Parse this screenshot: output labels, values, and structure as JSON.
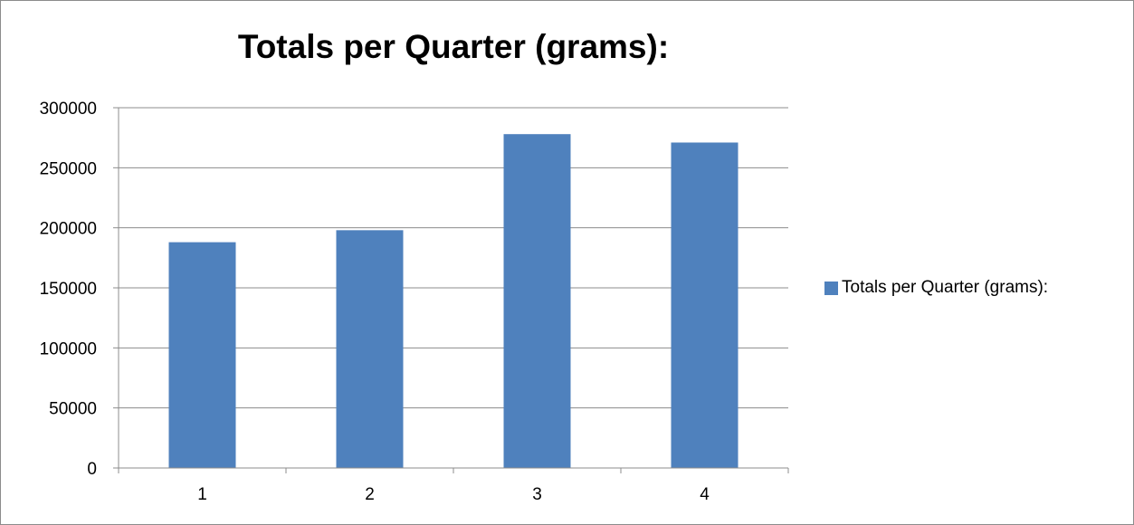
{
  "chart_data": {
    "type": "bar",
    "title": "Totals per Quarter (grams):",
    "categories": [
      "1",
      "2",
      "3",
      "4"
    ],
    "series": [
      {
        "name": "Totals per Quarter (grams):",
        "values": [
          188000,
          198000,
          278000,
          271000
        ],
        "color": "#4f81bd"
      }
    ],
    "ylim": [
      0,
      300000
    ],
    "yticks": [
      "0",
      "50000",
      "100000",
      "150000",
      "200000",
      "250000",
      "300000"
    ],
    "xlabel": "",
    "ylabel": "",
    "grid": true,
    "legend_position": "right"
  }
}
